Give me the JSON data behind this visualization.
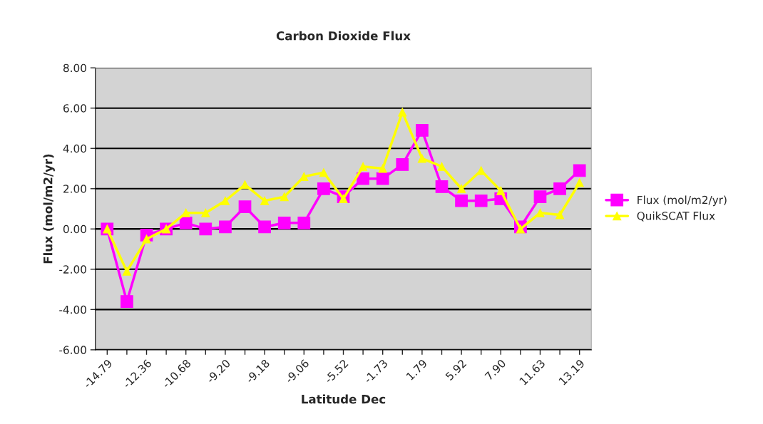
{
  "chart_data": {
    "type": "line",
    "title": "Carbon Dioxide Flux",
    "xlabel": "Latitude Dec",
    "ylabel": "Flux (mol/m2/yr)",
    "categories": [
      "-14.79",
      null,
      "-12.36",
      null,
      "-10.68",
      null,
      "-9.20",
      null,
      "-9.18",
      null,
      "-9.06",
      null,
      "-5.52",
      null,
      "-1.73",
      null,
      "1.79",
      null,
      "5.92",
      null,
      "7.90",
      null,
      "11.63",
      null,
      "13.19"
    ],
    "series": [
      {
        "name": "Flux (mol/m2/yr)",
        "color": "#ff00ff",
        "marker": "square",
        "values": [
          0,
          -3.6,
          -0.3,
          0,
          0.3,
          0,
          0.1,
          1.1,
          0.1,
          0.3,
          0.3,
          2.0,
          1.6,
          2.5,
          2.5,
          3.2,
          4.9,
          2.1,
          1.4,
          1.4,
          1.5,
          0.1,
          1.6,
          2.0,
          2.9
        ]
      },
      {
        "name": "QuikSCAT Flux",
        "color": "#ffff00",
        "marker": "triangle",
        "values": [
          0,
          -2.1,
          -0.5,
          0,
          0.8,
          0.8,
          1.4,
          2.2,
          1.4,
          1.6,
          2.6,
          2.8,
          1.5,
          3.1,
          3.0,
          5.8,
          3.5,
          3.1,
          2.0,
          2.9,
          1.9,
          0.0,
          0.8,
          0.7,
          2.3
        ]
      }
    ],
    "ylim": [
      -6,
      8
    ],
    "yticks": [
      {
        "value": -6,
        "label": "-6.00"
      },
      {
        "value": -4,
        "label": "-4.00"
      },
      {
        "value": -2,
        "label": "-2.00"
      },
      {
        "value": 0,
        "label": "0.00"
      },
      {
        "value": 2,
        "label": "2.00"
      },
      {
        "value": 4,
        "label": "4.00"
      },
      {
        "value": 6,
        "label": "6.00"
      },
      {
        "value": 8,
        "label": "8.00"
      }
    ],
    "grid": "y",
    "legend": "right"
  }
}
